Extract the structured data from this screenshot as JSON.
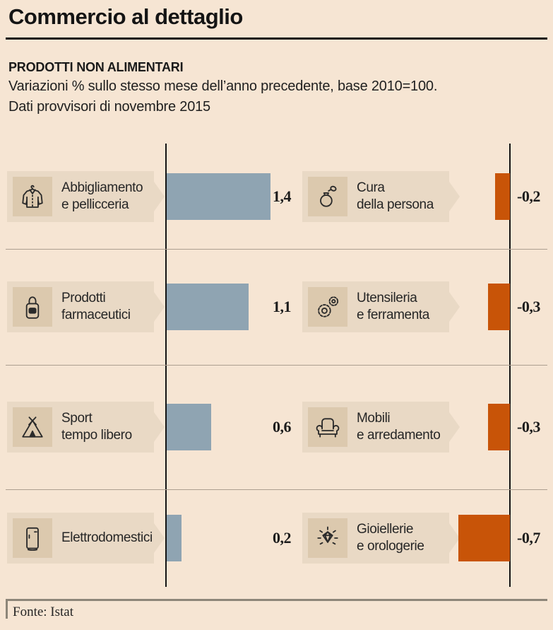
{
  "header": {
    "title": "Commercio al dettaglio",
    "section_title": "PRODOTTI NON ALIMENTARI",
    "subtitle_line1": "Variazioni % sullo stesso mese dell’anno precedente, base 2010=100.",
    "subtitle_line2": "Dati provvisori di novembre 2015"
  },
  "chart_data": {
    "type": "bar",
    "orientation": "horizontal",
    "unit": "% variation vs same month previous year",
    "positive_color": "#8fa4b2",
    "negative_color": "#c85408",
    "left_column": [
      {
        "label_line1": "Abbigliamento",
        "label_line2": "e pellicceria",
        "value": 1.4,
        "value_display": "1,4",
        "icon": "coat-icon"
      },
      {
        "label_line1": "Prodotti",
        "label_line2": "farmaceutici",
        "value": 1.1,
        "value_display": "1,1",
        "icon": "pharmacy-bottle-icon"
      },
      {
        "label_line1": "Sport",
        "label_line2": "tempo libero",
        "value": 0.6,
        "value_display": "0,6",
        "icon": "tent-icon"
      },
      {
        "label_line1": "Elettrodomestici",
        "label_line2": "",
        "value": 0.2,
        "value_display": "0,2",
        "icon": "fridge-icon"
      }
    ],
    "right_column": [
      {
        "label_line1": "Cura",
        "label_line2": "della persona",
        "value": -0.2,
        "value_display": "-0,2",
        "icon": "perfume-icon"
      },
      {
        "label_line1": "Utensileria",
        "label_line2": "e ferramenta",
        "value": -0.3,
        "value_display": "-0,3",
        "icon": "gears-icon"
      },
      {
        "label_line1": "Mobili",
        "label_line2": "e arredamento",
        "value": -0.3,
        "value_display": "-0,3",
        "icon": "armchair-icon"
      },
      {
        "label_line1": "Gioiellerie",
        "label_line2": "e orologerie",
        "value": -0.7,
        "value_display": "-0,7",
        "icon": "diamond-icon"
      }
    ]
  },
  "footer": {
    "source": "Fonte: Istat"
  }
}
